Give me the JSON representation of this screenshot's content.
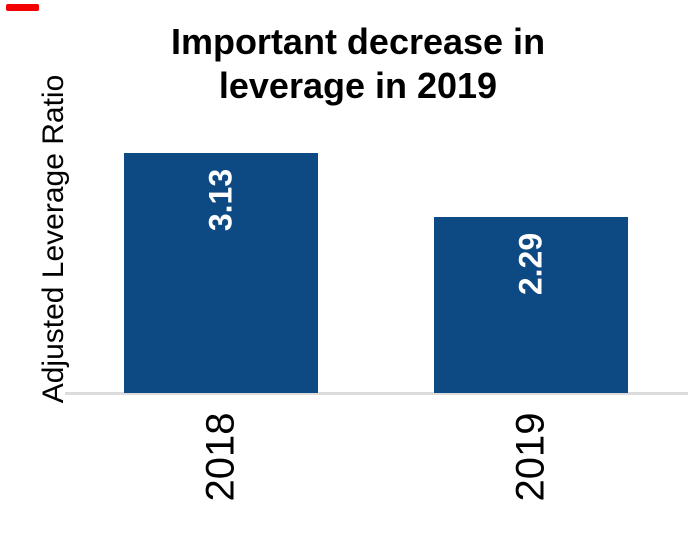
{
  "chart_data": {
    "type": "bar",
    "title": "Important decrease in leverage in 2019",
    "title_lines": [
      "Important decrease in",
      "leverage in 2019"
    ],
    "categories": [
      "2018",
      "2019"
    ],
    "values": [
      3.13,
      2.29
    ],
    "value_labels": [
      "3.13",
      "2.29"
    ],
    "xlabel": "",
    "ylabel": "Adjusted Leverage Ratio",
    "ylim": [
      0,
      3.5
    ],
    "grid": false,
    "legend": false,
    "orientation": "vertical",
    "value_label_position": "inside-end",
    "value_label_rotation": "vertical-bottom-up",
    "tick_label_rotation": "vertical-bottom-up",
    "bar_color": "#0d4a84",
    "value_label_color": "#ffffff",
    "axis_line_color": "#dcdcdc",
    "text_color": "#000000"
  },
  "annotations": {
    "red_dash_color": "#f40000"
  }
}
